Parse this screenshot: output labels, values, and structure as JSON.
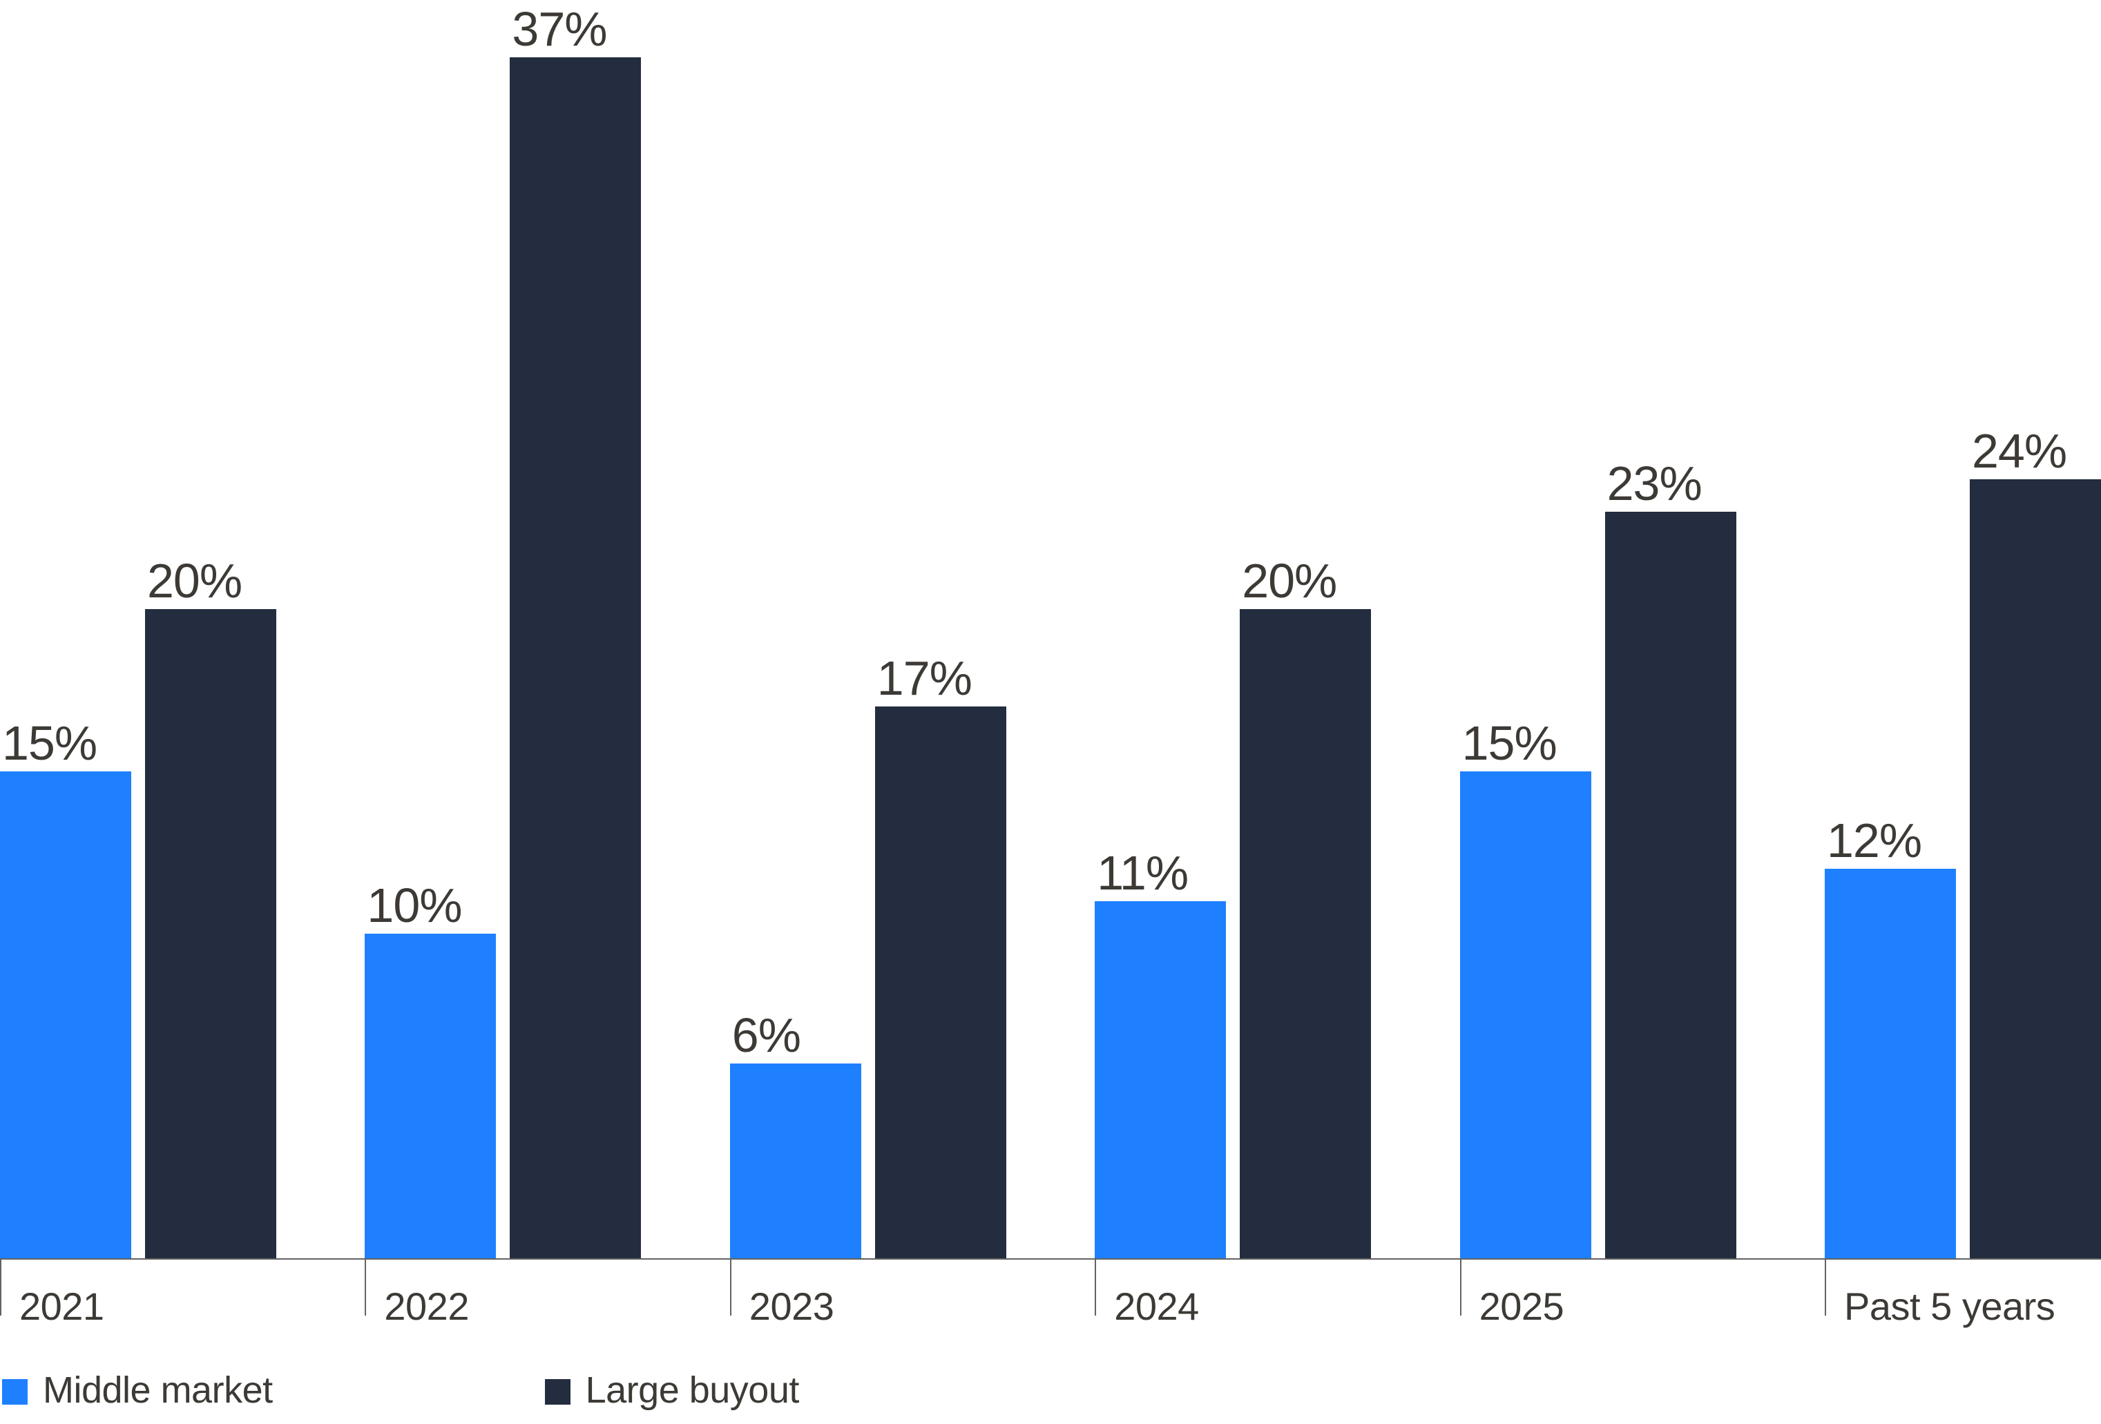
{
  "colors": {
    "middle_market": "#1e80ff",
    "large_buyout": "#232d3f",
    "text": "#3d3a36",
    "axis": "#636363",
    "background": "#ffffff"
  },
  "legend": {
    "items": [
      {
        "label": "Middle market",
        "color": "#1e80ff"
      },
      {
        "label": "Large buyout",
        "color": "#232d3f"
      }
    ],
    "position": "bottom-left"
  },
  "chart_data": {
    "type": "bar",
    "categories": [
      "2021",
      "2022",
      "2023",
      "2024",
      "2025",
      "Past 5 years"
    ],
    "series": [
      {
        "name": "Middle market",
        "color": "#1e80ff",
        "values": [
          15,
          10,
          6,
          11,
          15,
          12
        ]
      },
      {
        "name": "Large buyout",
        "color": "#232d3f",
        "values": [
          20,
          37,
          17,
          20,
          23,
          24
        ]
      }
    ],
    "value_labels": {
      "Middle market": [
        "15%",
        "10%",
        "6%",
        "11%",
        "15%",
        "12%"
      ],
      "Large buyout": [
        "20%",
        "37%",
        "17%",
        "20%",
        "23%",
        "24%"
      ]
    },
    "value_suffix": "%",
    "title": "",
    "xlabel": "",
    "ylabel": "",
    "ylim": [
      0,
      38
    ],
    "grid": false,
    "legend_position": "bottom-left"
  }
}
